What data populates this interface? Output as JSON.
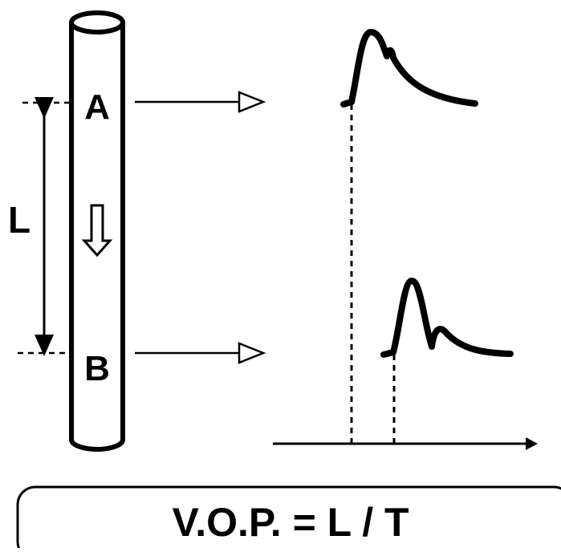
{
  "labels": {
    "a": "A",
    "b": "B",
    "l": "L",
    "formula": "V.O.P. = L / T"
  }
}
